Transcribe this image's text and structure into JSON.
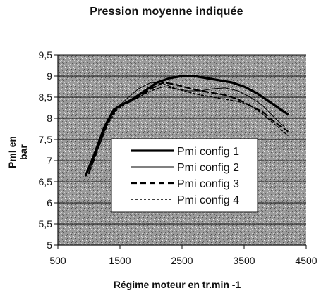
{
  "chart_data": {
    "type": "line",
    "title": "Pression moyenne indiquée",
    "xlabel": "Régime moteur en tr.min -1",
    "ylabel": "PmI en bar",
    "xlim": [
      500,
      4500
    ],
    "ylim": [
      5,
      9.5
    ],
    "xticks": [
      "500",
      "1500",
      "2500",
      "3500",
      "4500"
    ],
    "yticks": [
      "5",
      "5,5",
      "6",
      "6,5",
      "7",
      "7,5",
      "8",
      "8,5",
      "9",
      "9,5"
    ],
    "grid": "horizontal",
    "legend_position": "center",
    "series": [
      {
        "name": "Pmi config 1",
        "style": "thick-solid",
        "x": [
          950,
          1100,
          1250,
          1400,
          1500,
          1700,
          1900,
          2100,
          2300,
          2500,
          2700,
          2900,
          3100,
          3300,
          3500,
          3700,
          3900,
          4100,
          4200
        ],
        "y": [
          6.65,
          7.2,
          7.8,
          8.2,
          8.3,
          8.45,
          8.65,
          8.85,
          8.95,
          9.0,
          9.0,
          8.95,
          8.9,
          8.85,
          8.75,
          8.6,
          8.4,
          8.2,
          8.1
        ]
      },
      {
        "name": "Pmi config 2",
        "style": "thin-solid",
        "x": [
          1000,
          1150,
          1300,
          1450,
          1600,
          1800,
          2000,
          2200,
          2400,
          2600,
          2800,
          3000,
          3200,
          3400,
          3600,
          3800,
          4000,
          4150
        ],
        "y": [
          6.7,
          7.4,
          7.9,
          8.25,
          8.45,
          8.7,
          8.85,
          8.82,
          8.7,
          8.65,
          8.65,
          8.7,
          8.72,
          8.65,
          8.5,
          8.3,
          8.0,
          7.8
        ]
      },
      {
        "name": "Pmi config 3",
        "style": "dashed",
        "x": [
          1000,
          1150,
          1300,
          1450,
          1600,
          1800,
          2000,
          2200,
          2400,
          2600,
          2800,
          3000,
          3200,
          3400,
          3600,
          3800,
          4000,
          4200
        ],
        "y": [
          6.7,
          7.3,
          7.9,
          8.25,
          8.35,
          8.5,
          8.7,
          8.85,
          8.8,
          8.72,
          8.65,
          8.6,
          8.55,
          8.45,
          8.3,
          8.15,
          7.9,
          7.7
        ]
      },
      {
        "name": "Pmi config 4",
        "style": "dotted",
        "x": [
          1000,
          1150,
          1300,
          1450,
          1600,
          1800,
          2000,
          2200,
          2400,
          2600,
          2800,
          3000,
          3200,
          3400,
          3600,
          3800,
          4000,
          4200
        ],
        "y": [
          6.7,
          7.3,
          7.85,
          8.2,
          8.35,
          8.5,
          8.65,
          8.75,
          8.7,
          8.62,
          8.55,
          8.5,
          8.45,
          8.4,
          8.3,
          8.1,
          7.85,
          7.6
        ]
      }
    ]
  }
}
